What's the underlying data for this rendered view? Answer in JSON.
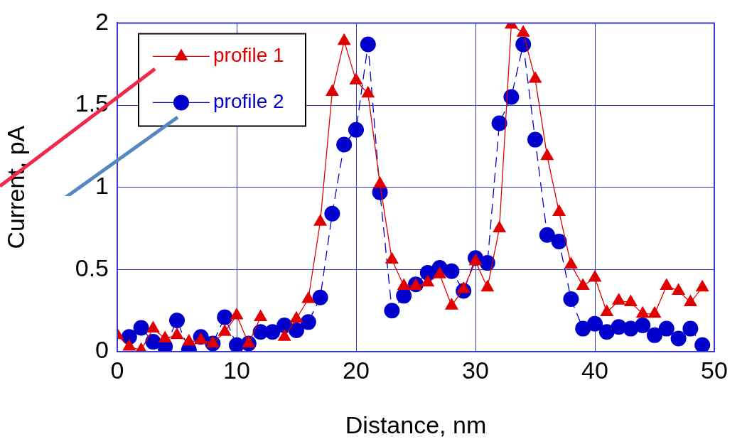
{
  "chart_data": {
    "type": "line",
    "xlabel": "Distance, nm",
    "ylabel": "Current, pA",
    "xlim": [
      0,
      50
    ],
    "xticks": [
      0,
      10,
      20,
      30,
      40,
      50
    ],
    "ylim": [
      0,
      2
    ],
    "yticks": [
      0,
      0.5,
      1,
      1.5,
      2
    ],
    "grid": true,
    "legend": "top left",
    "series": [
      {
        "name": "profile 1",
        "color": "#e00000",
        "marker": "triangle",
        "line_style": "solid",
        "x": [
          0,
          1,
          2,
          3,
          4,
          5,
          6,
          7,
          8,
          9,
          10,
          11,
          12,
          13,
          14,
          15,
          16,
          17,
          18,
          19,
          20,
          21,
          22,
          23,
          24,
          25,
          26,
          27,
          28,
          29,
          30,
          31,
          32,
          33,
          34,
          35,
          36,
          37,
          38,
          39,
          40,
          41,
          42,
          43,
          44,
          45,
          46,
          47,
          48,
          49
        ],
        "values": [
          0.1,
          0.03,
          0.01,
          0.14,
          0.08,
          0.1,
          0.06,
          0.07,
          0.05,
          0.12,
          0.22,
          0.05,
          0.21,
          null,
          0.09,
          0.2,
          0.32,
          0.79,
          1.58,
          1.89,
          1.65,
          1.57,
          1.02,
          0.56,
          0.4,
          0.4,
          0.42,
          0.47,
          0.28,
          0.38,
          0.55,
          0.39,
          0.75,
          1.99,
          1.94,
          1.66,
          1.19,
          0.85,
          0.53,
          0.4,
          0.45,
          0.24,
          0.31,
          0.3,
          0.23,
          0.23,
          0.4,
          0.37,
          0.3,
          0.39
        ]
      },
      {
        "name": "profile 2",
        "color": "#0000cc",
        "marker": "circle",
        "line_style": "dashed",
        "x": [
          1,
          2,
          3,
          4,
          5,
          6,
          7,
          8,
          9,
          10,
          11,
          12,
          13,
          14,
          15,
          16,
          17,
          18,
          19,
          20,
          21,
          22,
          23,
          24,
          25,
          26,
          27,
          28,
          29,
          30,
          31,
          32,
          33,
          34,
          35,
          36,
          37,
          38,
          39,
          40,
          41,
          42,
          43,
          44,
          45,
          46,
          47,
          48,
          49
        ],
        "values": [
          0.09,
          0.145,
          0.06,
          0.03,
          0.19,
          0.01,
          0.09,
          0.05,
          0.21,
          0.04,
          0.05,
          0.12,
          0.12,
          0.16,
          0.13,
          0.18,
          0.33,
          0.84,
          1.26,
          1.35,
          1.87,
          0.97,
          0.25,
          0.34,
          0.41,
          0.48,
          0.51,
          0.49,
          0.37,
          0.57,
          0.54,
          1.39,
          1.55,
          1.87,
          1.29,
          0.71,
          0.67,
          0.32,
          0.14,
          0.17,
          0.12,
          0.15,
          0.14,
          0.16,
          0.1,
          0.14,
          0.08,
          0.14,
          0.04
        ]
      }
    ]
  }
}
